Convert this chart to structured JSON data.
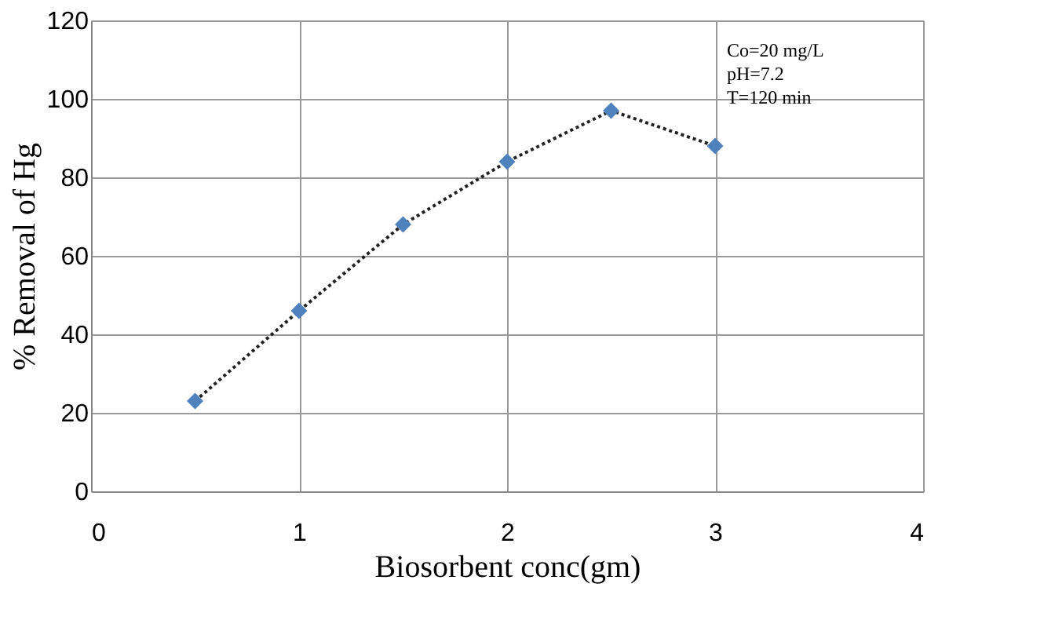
{
  "chart_data": {
    "type": "line",
    "xlabel": "Biosorbent conc(gm)",
    "ylabel": "% Removal of Hg",
    "x": [
      0.5,
      1,
      1.5,
      2,
      2.5,
      3
    ],
    "series": [
      {
        "color": "#4f81bd",
        "values": [
          23,
          46,
          68,
          84,
          97,
          88
        ]
      }
    ],
    "xlim": [
      0,
      4
    ],
    "xticks": [
      0,
      1,
      2,
      3,
      4
    ],
    "ylim": [
      0,
      120
    ],
    "yticks": [
      0,
      20,
      40,
      60,
      80,
      100,
      120
    ],
    "grid": true,
    "marker": "diamond",
    "line_style": "dotted",
    "annotations": [
      "Co=20 mg/L",
      "pH=7.2",
      "T=120 min"
    ]
  }
}
